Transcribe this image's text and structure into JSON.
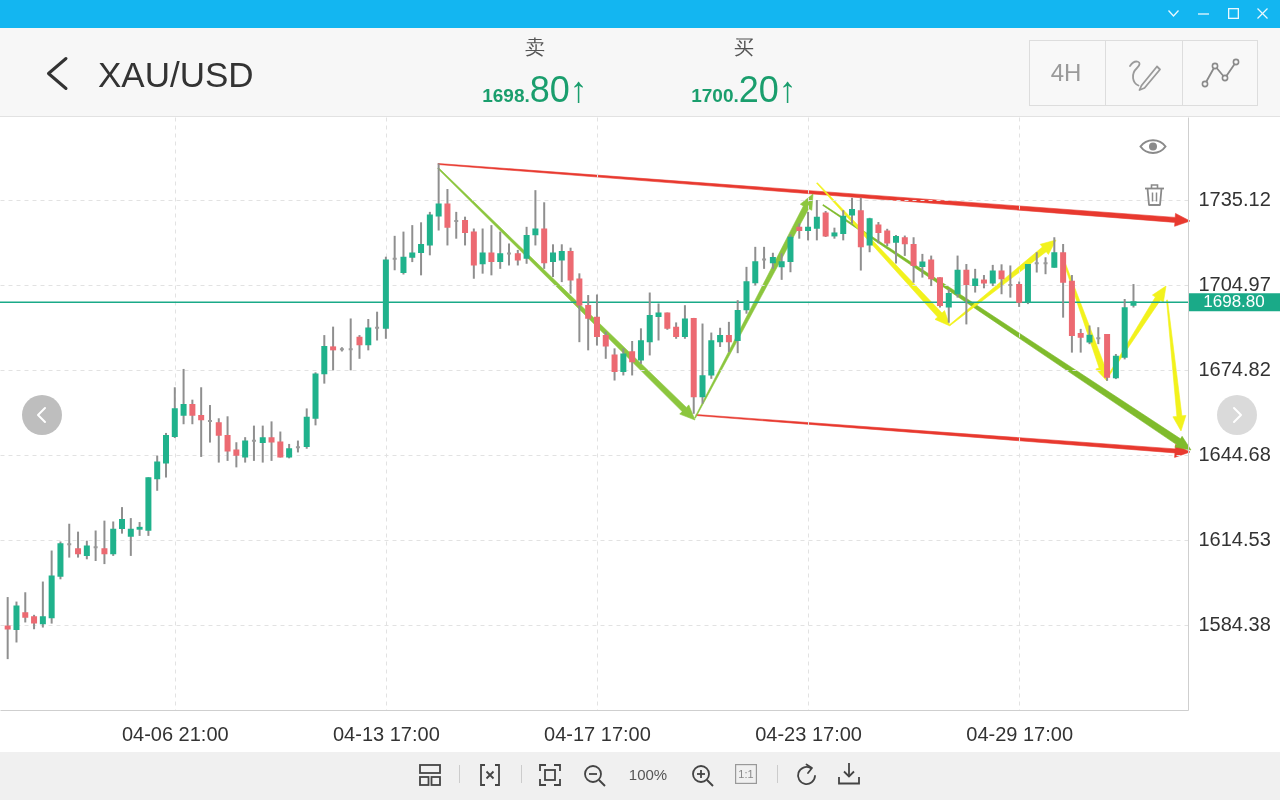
{
  "chart_data": {
    "type": "candlestick",
    "title": "XAU/USD",
    "annotations": [
      "卖",
      "1698.80↑",
      "买",
      "1700.20↑",
      "4H",
      "100%",
      "1:1"
    ],
    "categories": [
      null,
      null,
      null,
      null,
      null,
      null,
      null,
      null,
      null,
      null,
      null,
      null,
      null,
      null,
      null,
      null,
      null,
      null,
      null,
      "04-06 21:00",
      null,
      null,
      null,
      null,
      null,
      null,
      null,
      null,
      null,
      null,
      null,
      null,
      null,
      null,
      null,
      null,
      null,
      null,
      null,
      null,
      null,
      null,
      null,
      "04-13 17:00",
      null,
      null,
      null,
      null,
      null,
      null,
      null,
      null,
      null,
      null,
      null,
      null,
      null,
      null,
      null,
      null,
      null,
      null,
      null,
      null,
      null,
      null,
      null,
      "04-17 17:00",
      null,
      null,
      null,
      null,
      null,
      null,
      null,
      null,
      null,
      null,
      null,
      null,
      null,
      null,
      null,
      null,
      null,
      null,
      null,
      null,
      null,
      null,
      null,
      "04-23 17:00",
      null,
      null,
      null,
      null,
      null,
      null,
      null,
      null,
      null,
      null,
      null,
      null,
      null,
      null,
      null,
      null,
      null,
      null,
      null,
      null,
      null,
      null,
      null,
      "04-29 17:00",
      null,
      null,
      null,
      null,
      null,
      null,
      null,
      null,
      null,
      null,
      null,
      null,
      null
    ],
    "ohlc": [
      [
        1583.8,
        1593.9,
        1572.6,
        1583.1
      ],
      [
        1582.9,
        1592.3,
        1578.5,
        1590.9
      ],
      [
        1588.5,
        1595.6,
        1585.6,
        1587.3
      ],
      [
        1587.1,
        1587.6,
        1583.2,
        1585.2
      ],
      [
        1585.0,
        1599.4,
        1583.8,
        1587.1
      ],
      [
        1587.1,
        1610.4,
        1585.2,
        1601.5
      ],
      [
        1601.8,
        1613.6,
        1600.9,
        1613.0
      ],
      [
        1613.0,
        1619.9,
        1608.6,
        1613.0
      ],
      [
        1611.2,
        1617.1,
        1608.6,
        1609.8
      ],
      [
        1609.2,
        1613.9,
        1608.0,
        1612.2
      ],
      [
        1611.9,
        1617.5,
        1607.4,
        1611.9
      ],
      [
        1611.2,
        1621.0,
        1606.3,
        1609.8
      ],
      [
        1609.8,
        1620.7,
        1609.2,
        1618.1
      ],
      [
        1618.7,
        1625.8,
        1617.1,
        1621.6
      ],
      [
        1616.0,
        1621.9,
        1609.2,
        1618.1
      ],
      [
        1618.5,
        1620.5,
        1616.3,
        1618.8
      ],
      [
        1618.1,
        1636.4,
        1616.3,
        1636.4
      ],
      [
        1636.4,
        1644.1,
        1632.3,
        1642.0
      ],
      [
        1642.0,
        1652.1,
        1637.0,
        1651.4
      ],
      [
        1651.4,
        1668.3,
        1651.0,
        1660.9
      ],
      [
        1658.9,
        1674.8,
        1655.9,
        1662.4
      ],
      [
        1662.4,
        1663.9,
        1655.9,
        1658.9
      ],
      [
        1658.5,
        1668.3,
        1644.3,
        1657.3
      ],
      [
        1656.7,
        1662.0,
        1649.4,
        1656.7
      ],
      [
        1655.9,
        1657.3,
        1642.3,
        1651.8
      ],
      [
        1651.4,
        1658.0,
        1642.9,
        1646.2
      ],
      [
        1646.2,
        1648.8,
        1640.6,
        1644.7
      ],
      [
        1644.1,
        1650.6,
        1642.3,
        1649.4
      ],
      [
        1649.7,
        1654.7,
        1642.9,
        1649.7
      ],
      [
        1649.2,
        1654.7,
        1642.3,
        1650.6
      ],
      [
        1650.6,
        1656.2,
        1642.9,
        1649.4
      ],
      [
        1649.1,
        1652.6,
        1644.1,
        1644.1
      ],
      [
        1644.1,
        1648.2,
        1643.8,
        1646.7
      ],
      [
        1647.4,
        1649.4,
        1645.9,
        1647.4
      ],
      [
        1647.8,
        1660.8,
        1647.2,
        1657.8
      ],
      [
        1657.8,
        1673.6,
        1655.5,
        1673.2
      ],
      [
        1673.6,
        1686.8,
        1670.3,
        1682.9
      ],
      [
        1682.8,
        1689.8,
        1675.0,
        1682.1
      ],
      [
        1682.1,
        1682.5,
        1681.7,
        1682.1
      ],
      [
        1682.1,
        1692.7,
        1675.0,
        1682.1
      ],
      [
        1686.2,
        1686.8,
        1679.1,
        1683.9
      ],
      [
        1683.9,
        1692.5,
        1682.1,
        1689.5
      ],
      [
        1689.8,
        1695.1,
        1685.6,
        1689.8
      ],
      [
        1689.8,
        1714.6,
        1686.2,
        1713.6
      ],
      [
        1714.2,
        1722.0,
        1710.5,
        1714.2
      ],
      [
        1709.5,
        1723.5,
        1709.0,
        1714.6
      ],
      [
        1714.9,
        1725.8,
        1713.4,
        1716.1
      ],
      [
        1716.6,
        1726.8,
        1708.7,
        1719.1
      ],
      [
        1719.3,
        1730.5,
        1715.8,
        1729.6
      ],
      [
        1729.6,
        1747.7,
        1724.6,
        1733.5
      ],
      [
        1733.5,
        1738.6,
        1719.3,
        1725.6
      ],
      [
        1727.6,
        1730.5,
        1721.7,
        1727.6
      ],
      [
        1727.6,
        1728.8,
        1719.3,
        1723.7
      ],
      [
        1723.5,
        1724.6,
        1707.5,
        1712.2
      ],
      [
        1712.6,
        1724.6,
        1709.3,
        1716.1
      ],
      [
        1716.1,
        1725.8,
        1708.7,
        1713.4
      ],
      [
        1713.4,
        1723.5,
        1711.0,
        1715.8
      ],
      [
        1716.1,
        1719.3,
        1712.2,
        1716.1
      ],
      [
        1715.8,
        1717.0,
        1712.2,
        1714.0
      ],
      [
        1714.6,
        1725.2,
        1712.8,
        1722.3
      ],
      [
        1722.9,
        1738.2,
        1719.3,
        1724.6
      ],
      [
        1724.6,
        1733.9,
        1711.0,
        1713.0
      ],
      [
        1713.4,
        1719.0,
        1708.1,
        1716.1
      ],
      [
        1714.0,
        1719.0,
        1706.3,
        1716.6
      ],
      [
        1716.6,
        1717.8,
        1702.2,
        1706.9
      ],
      [
        1706.9,
        1708.7,
        1685.0,
        1698.0
      ],
      [
        1697.5,
        1701.0,
        1682.1,
        1693.3
      ],
      [
        1693.3,
        1701.2,
        1683.8,
        1686.8
      ],
      [
        1686.8,
        1688.0,
        1679.1,
        1683.5
      ],
      [
        1679.9,
        1682.1,
        1671.4,
        1674.4
      ],
      [
        1674.4,
        1682.1,
        1673.2,
        1680.3
      ],
      [
        1681.1,
        1684.7,
        1673.2,
        1677.9
      ],
      [
        1678.5,
        1689.2,
        1677.3,
        1685.0
      ],
      [
        1685.0,
        1701.9,
        1680.3,
        1693.9
      ],
      [
        1693.9,
        1698.0,
        1685.6,
        1694.8
      ],
      [
        1694.8,
        1694.8,
        1689.4,
        1689.8
      ],
      [
        1689.8,
        1691.3,
        1686.2,
        1686.8
      ],
      [
        1686.8,
        1697.4,
        1686.2,
        1692.7
      ],
      [
        1692.9,
        1692.9,
        1659.6,
        1665.5
      ],
      [
        1665.5,
        1690.9,
        1663.2,
        1672.6
      ],
      [
        1673.2,
        1687.7,
        1672.0,
        1685.0
      ],
      [
        1685.0,
        1689.4,
        1683.3,
        1686.8
      ],
      [
        1686.8,
        1691.5,
        1681.5,
        1685.0
      ],
      [
        1685.4,
        1699.2,
        1681.1,
        1695.7
      ],
      [
        1696.3,
        1711.0,
        1695.1,
        1705.9
      ],
      [
        1705.9,
        1718.1,
        1705.1,
        1713.0
      ],
      [
        1714.0,
        1718.1,
        1711.0,
        1714.0
      ],
      [
        1713.0,
        1716.0,
        1711.0,
        1714.5
      ],
      [
        1711.6,
        1715.8,
        1707.1,
        1713.0
      ],
      [
        1713.4,
        1722.5,
        1709.8,
        1721.7
      ],
      [
        1725.2,
        1726.4,
        1721.7,
        1724.4
      ],
      [
        1724.4,
        1730.5,
        1721.1,
        1725.2
      ],
      [
        1725.2,
        1734.7,
        1721.1,
        1728.8
      ],
      [
        1730.3,
        1730.8,
        1722.3,
        1722.5
      ],
      [
        1722.5,
        1724.9,
        1721.7,
        1723.2
      ],
      [
        1723.4,
        1731.1,
        1721.1,
        1729.1
      ],
      [
        1729.9,
        1735.5,
        1727.0,
        1731.5
      ],
      [
        1731.1,
        1735.5,
        1710.4,
        1718.7
      ],
      [
        1719.3,
        1728.4,
        1716.9,
        1728.2
      ],
      [
        1726.0,
        1726.9,
        1720.1,
        1723.7
      ],
      [
        1723.9,
        1724.5,
        1719.1,
        1720.0
      ],
      [
        1720.3,
        1722.3,
        1712.9,
        1721.9
      ],
      [
        1721.5,
        1722.1,
        1715.6,
        1719.7
      ],
      [
        1719.1,
        1721.5,
        1706.1,
        1712.0
      ],
      [
        1711.7,
        1715.6,
        1707.9,
        1712.9
      ],
      [
        1713.6,
        1715.0,
        1704.9,
        1707.3
      ],
      [
        1707.3,
        1707.3,
        1697.3,
        1697.8
      ],
      [
        1697.3,
        1703.2,
        1691.9,
        1701.7
      ],
      [
        1702.0,
        1715.0,
        1700.8,
        1710.0
      ],
      [
        1710.0,
        1712.0,
        1691.3,
        1705.3
      ],
      [
        1704.9,
        1710.3,
        1702.6,
        1706.9
      ],
      [
        1706.5,
        1708.1,
        1704.1,
        1705.8
      ],
      [
        1705.8,
        1711.7,
        1704.9,
        1709.7
      ],
      [
        1709.7,
        1711.9,
        1702.0,
        1707.3
      ],
      [
        1704.9,
        1711.5,
        1700.8,
        1704.9
      ],
      [
        1704.9,
        1705.8,
        1697.5,
        1699.0
      ],
      [
        1699.0,
        1712.0,
        1698.5,
        1712.0
      ],
      [
        1712.6,
        1716.2,
        1709.7,
        1712.6
      ],
      [
        1712.6,
        1714.4,
        1709.1,
        1712.6
      ],
      [
        1711.4,
        1721.5,
        1711.4,
        1716.2
      ],
      [
        1716.2,
        1719.1,
        1693.7,
        1706.1
      ],
      [
        1706.1,
        1708.1,
        1681.3,
        1687.2
      ],
      [
        1687.5,
        1689.0,
        1681.3,
        1686.6
      ],
      [
        1684.9,
        1690.2,
        1684.3,
        1686.9
      ],
      [
        1686.0,
        1689.6,
        1684.3,
        1686.0
      ],
      [
        1687.2,
        1687.2,
        1671.3,
        1672.4
      ],
      [
        1672.2,
        1680.1,
        1671.9,
        1679.5
      ],
      [
        1679.5,
        1699.6,
        1678.9,
        1696.7
      ],
      [
        1697.9,
        1704.9,
        1697.3,
        1698.8
      ]
    ],
    "colors": [
      "#ec6a72",
      "#20b28c",
      "#ec6a72",
      "#ec6a72",
      "#20b28c",
      "#20b28c",
      "#20b28c",
      "#9a9a9a",
      "#ec6a72",
      "#20b28c",
      "#9a9a9a",
      "#ec6a72",
      "#20b28c",
      "#20b28c",
      "#20b28c",
      "#20b28c",
      "#20b28c",
      "#20b28c",
      "#20b28c",
      "#20b28c",
      "#20b28c",
      "#ec6a72",
      "#ec6a72",
      "#9a9a9a",
      "#ec6a72",
      "#ec6a72",
      "#ec6a72",
      "#20b28c",
      "#9a9a9a",
      "#20b28c",
      "#ec6a72",
      "#ec6a72",
      "#20b28c",
      "#9a9a9a",
      "#20b28c",
      "#20b28c",
      "#20b28c",
      "#ec6a72",
      "#9a9a9a",
      "#9a9a9a",
      "#ec6a72",
      "#20b28c",
      "#9a9a9a",
      "#20b28c",
      "#9a9a9a",
      "#20b28c",
      "#20b28c",
      "#20b28c",
      "#20b28c",
      "#20b28c",
      "#ec6a72",
      "#9a9a9a",
      "#ec6a72",
      "#ec6a72",
      "#20b28c",
      "#ec6a72",
      "#20b28c",
      "#9a9a9a",
      "#ec6a72",
      "#20b28c",
      "#20b28c",
      "#ec6a72",
      "#20b28c",
      "#20b28c",
      "#ec6a72",
      "#ec6a72",
      "#ec6a72",
      "#ec6a72",
      "#ec6a72",
      "#ec6a72",
      "#20b28c",
      "#ec6a72",
      "#20b28c",
      "#20b28c",
      "#20b28c",
      "#ec6a72",
      "#ec6a72",
      "#20b28c",
      "#ec6a72",
      "#20b28c",
      "#20b28c",
      "#20b28c",
      "#ec6a72",
      "#20b28c",
      "#20b28c",
      "#20b28c",
      "#9a9a9a",
      "#20b28c",
      "#20b28c",
      "#20b28c",
      "#ec6a72",
      "#20b28c",
      "#20b28c",
      "#ec6a72",
      "#20b28c",
      "#20b28c",
      "#20b28c",
      "#ec6a72",
      "#20b28c",
      "#ec6a72",
      "#ec6a72",
      "#20b28c",
      "#ec6a72",
      "#ec6a72",
      "#20b28c",
      "#ec6a72",
      "#ec6a72",
      "#20b28c",
      "#20b28c",
      "#ec6a72",
      "#20b28c",
      "#ec6a72",
      "#20b28c",
      "#ec6a72",
      "#9a9a9a",
      "#ec6a72",
      "#20b28c",
      "#9a9a9a",
      "#9a9a9a",
      "#20b28c",
      "#ec6a72",
      "#ec6a72",
      "#ec6a72",
      "#20b28c",
      "#9a9a9a",
      "#ec6a72",
      "#20b28c",
      "#20b28c",
      "#20b28c"
    ],
    "ref_lines": [
      {
        "axis": "y",
        "value": 1698.8,
        "label": "1698.80",
        "color": "#1aaa88"
      }
    ],
    "ylim": [
      1554.2,
      1764.5
    ],
    "yticks": [
      1735.12,
      1704.97,
      1674.82,
      1644.68,
      1614.53,
      1584.38
    ],
    "grid": true
  }
}
